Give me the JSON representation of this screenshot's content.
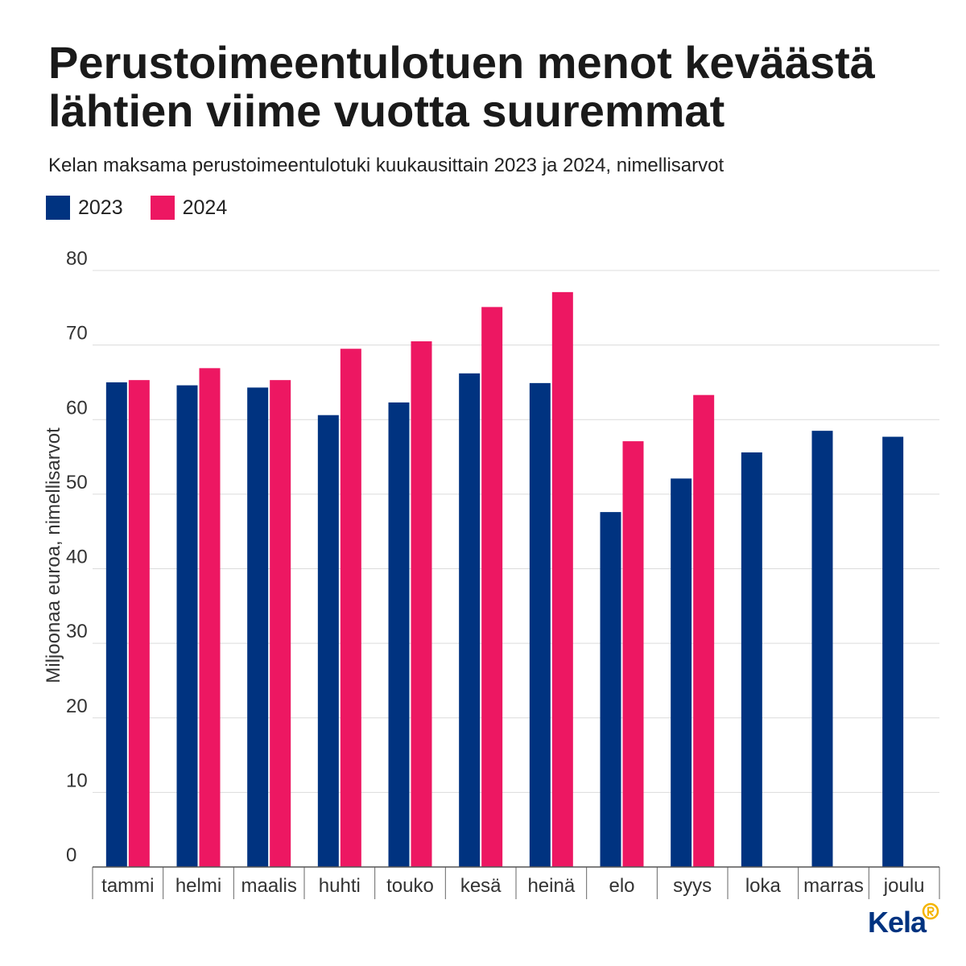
{
  "chart_data": {
    "type": "bar",
    "title": "Perustoimeentulotuen menot keväästä lähtien viime vuotta suuremmat",
    "subtitle": "Kelan maksama perustoimeentulotuki kuukausittain 2023 ja 2024, nimellisarvot",
    "xlabel": "",
    "ylabel": "Miljoonaa euroa, nimellisarvot",
    "ylim": [
      0,
      80
    ],
    "yticks": [
      0,
      10,
      20,
      30,
      40,
      50,
      60,
      70,
      80
    ],
    "grid": true,
    "legend": "top-left",
    "categories": [
      "tammi",
      "helmi",
      "maalis",
      "huhti",
      "touko",
      "kesä",
      "heinä",
      "elo",
      "syys",
      "loka",
      "marras",
      "joulu"
    ],
    "series": [
      {
        "name": "2023",
        "color": "#003380",
        "values": [
          65.0,
          64.6,
          64.3,
          60.6,
          62.3,
          66.2,
          64.9,
          47.6,
          52.1,
          55.6,
          58.5,
          57.7
        ]
      },
      {
        "name": "2024",
        "color": "#ED1762",
        "values": [
          65.3,
          66.9,
          65.3,
          69.5,
          70.5,
          75.1,
          77.1,
          57.1,
          63.3,
          null,
          null,
          null
        ]
      }
    ]
  },
  "branding": {
    "logo_text": "Kela",
    "logo_color": "#003380",
    "emblem_icon": "kela-emblem-icon",
    "emblem_color": "#F4B400"
  }
}
